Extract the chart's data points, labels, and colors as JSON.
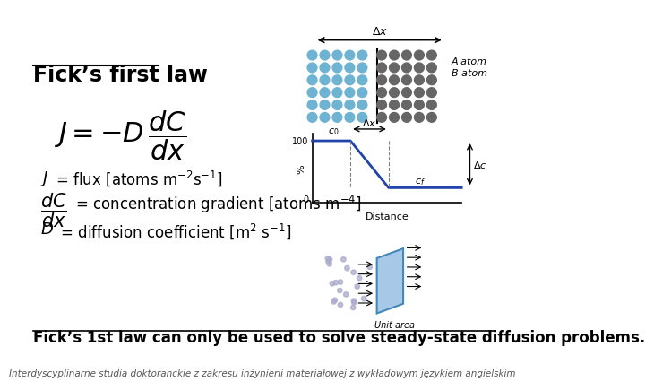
{
  "title": "Fick’s first law",
  "bottom_text": "Fick’s 1st law can only be used to solve steady-state diffusion problems.",
  "footer_text": "Interdyscyplinarne studia doktoranckie z zakresu inżynierii materiałowej z wykładowym językiem angielskim",
  "bg_color": "#ffffff",
  "text_color": "#000000",
  "title_color": "#000000",
  "bottom_color": "#000000"
}
